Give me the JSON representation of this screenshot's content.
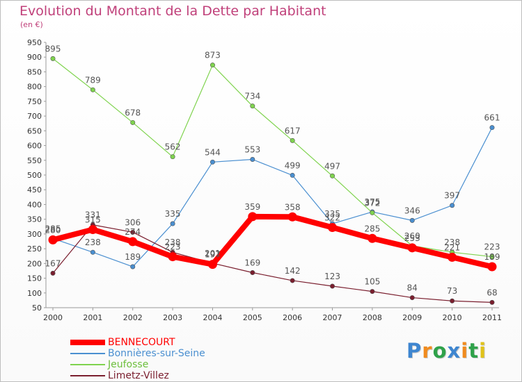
{
  "chart_data": {
    "type": "line",
    "title": "Evolution du Montant de la Dette par Habitant",
    "unit_label": "(en €)",
    "x": [
      "2000",
      "2001",
      "2002",
      "2003",
      "2004",
      "2005",
      "2006",
      "2007",
      "2008",
      "2009",
      "2010",
      "2011"
    ],
    "ylim": [
      50,
      950
    ],
    "yticks": [
      50,
      100,
      150,
      200,
      250,
      300,
      350,
      400,
      450,
      500,
      550,
      600,
      650,
      700,
      750,
      800,
      850,
      900,
      950
    ],
    "grid": false,
    "legend_position": "bottom-left",
    "series": [
      {
        "name": "BENNECOURT",
        "color": "#ff0000",
        "values": [
          280,
          315,
          274,
          223,
          197,
          359,
          358,
          322,
          285,
          253,
          221,
          189
        ]
      },
      {
        "name": "Bonnières-sur-Seine",
        "color": "#4a8fd0",
        "values": [
          285,
          238,
          189,
          335,
          544,
          553,
          499,
          335,
          375,
          346,
          397,
          661
        ]
      },
      {
        "name": "Jeufosse",
        "color": "#7fd34e",
        "values": [
          895,
          789,
          678,
          562,
          873,
          734,
          617,
          497,
          372,
          260,
          238,
          223
        ]
      },
      {
        "name": "Limetz-Villez",
        "color": "#7a1e2e",
        "values": [
          167,
          331,
          306,
          238,
          201,
          169,
          142,
          123,
          105,
          84,
          73,
          68
        ]
      }
    ]
  },
  "logo": {
    "text": "Proxiti",
    "colors": [
      "#3e86d0",
      "#f08b1e",
      "#2fa24a",
      "#3e86d0",
      "#f08b1e",
      "#2fa24a",
      "#e0c21a"
    ]
  }
}
